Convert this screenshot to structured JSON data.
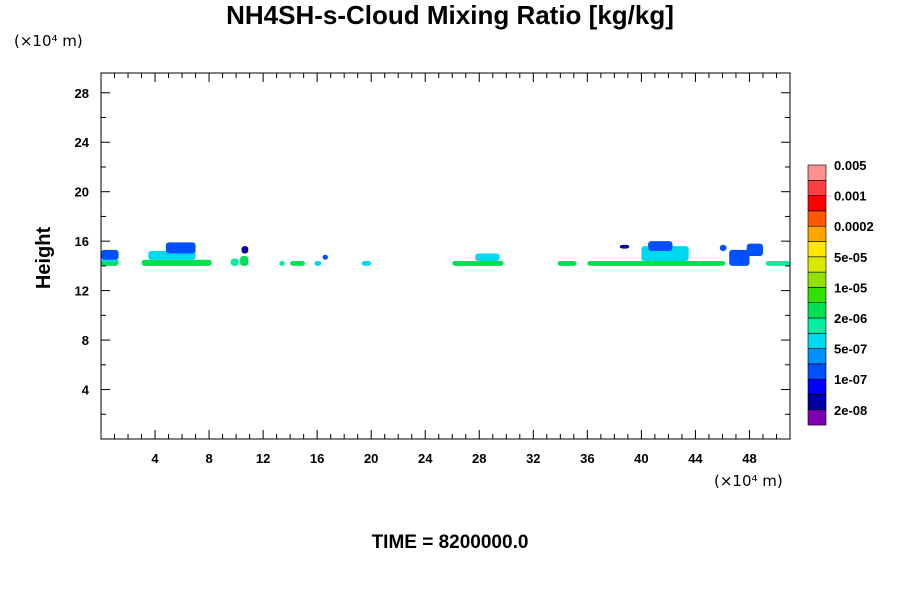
{
  "title": "NH4SH-s-Cloud Mixing Ratio [kg/kg]",
  "y_unit": "(×10⁴ m)",
  "x_unit": "(×10⁴ m)",
  "time_label": "TIME = 8200000.0",
  "chart_data": {
    "type": "heatmap",
    "title": "NH4SH-s-Cloud Mixing Ratio [kg/kg]",
    "xlabel": "",
    "ylabel": "Height",
    "xlim": [
      0,
      51
    ],
    "ylim": [
      0,
      29.6
    ],
    "x_ticks": [
      4,
      8,
      12,
      16,
      20,
      24,
      28,
      32,
      36,
      40,
      44,
      48
    ],
    "y_ticks": [
      4,
      8,
      12,
      16,
      20,
      24,
      28
    ],
    "colorbar": {
      "colors": [
        "#7f00b2",
        "#0000a0",
        "#0000ff",
        "#0050ff",
        "#0090ff",
        "#00d8f0",
        "#00f0a0",
        "#00e050",
        "#30e000",
        "#90e000",
        "#d8e800",
        "#ffe600",
        "#ffa500",
        "#ff5a00",
        "#ff0000",
        "#ff4040",
        "#ff9090"
      ],
      "tick_labels": [
        "2e-08",
        "1e-07",
        "5e-07",
        "2e-06",
        "1e-05",
        "5e-05",
        "0.0002",
        "0.001",
        "0.005"
      ]
    },
    "cloud_layer": {
      "base_height": 14.0,
      "main_band_top": 14.5,
      "patches": [
        {
          "x0": 0.0,
          "x1": 1.3,
          "y0": 14.0,
          "y1": 14.5,
          "level": "1e-05",
          "top": "5e-07"
        },
        {
          "x0": 0.0,
          "x1": 1.3,
          "y0": 14.5,
          "y1": 15.3,
          "level": "1e-07"
        },
        {
          "x0": 3.0,
          "x1": 8.2,
          "y0": 14.0,
          "y1": 14.5,
          "level": "1e-05"
        },
        {
          "x0": 3.5,
          "x1": 7.0,
          "y0": 14.5,
          "y1": 15.2,
          "level": "5e-07"
        },
        {
          "x0": 4.8,
          "x1": 7.0,
          "y0": 15.0,
          "y1": 15.9,
          "level": "1e-07"
        },
        {
          "x0": 9.6,
          "x1": 10.2,
          "y0": 14.0,
          "y1": 14.6,
          "level": "2e-06"
        },
        {
          "x0": 10.3,
          "x1": 10.9,
          "y0": 14.0,
          "y1": 14.8,
          "level": "1e-05"
        },
        {
          "x0": 10.4,
          "x1": 10.9,
          "y0": 15.0,
          "y1": 15.6,
          "level": "2e-08"
        },
        {
          "x0": 13.2,
          "x1": 13.6,
          "y0": 14.0,
          "y1": 14.4,
          "level": "2e-06"
        },
        {
          "x0": 14.0,
          "x1": 15.1,
          "y0": 14.0,
          "y1": 14.4,
          "level": "1e-05"
        },
        {
          "x0": 15.8,
          "x1": 16.3,
          "y0": 14.0,
          "y1": 14.4,
          "level": "5e-07"
        },
        {
          "x0": 16.4,
          "x1": 16.8,
          "y0": 14.5,
          "y1": 14.9,
          "level": "1e-07"
        },
        {
          "x0": 19.3,
          "x1": 20.0,
          "y0": 14.0,
          "y1": 14.4,
          "level": "5e-07"
        },
        {
          "x0": 26.0,
          "x1": 29.8,
          "y0": 14.0,
          "y1": 14.4,
          "level": "1e-05"
        },
        {
          "x0": 27.7,
          "x1": 29.5,
          "y0": 14.4,
          "y1": 15.0,
          "level": "5e-07"
        },
        {
          "x0": 33.8,
          "x1": 35.2,
          "y0": 14.0,
          "y1": 14.4,
          "level": "1e-05"
        },
        {
          "x0": 36.0,
          "x1": 46.2,
          "y0": 14.0,
          "y1": 14.4,
          "level": "1e-05"
        },
        {
          "x0": 40.0,
          "x1": 43.5,
          "y0": 14.4,
          "y1": 15.6,
          "level": "5e-07"
        },
        {
          "x0": 40.5,
          "x1": 42.3,
          "y0": 15.2,
          "y1": 16.0,
          "level": "1e-07"
        },
        {
          "x0": 38.4,
          "x1": 39.1,
          "y0": 15.4,
          "y1": 15.7,
          "level": "2e-08"
        },
        {
          "x0": 45.8,
          "x1": 46.3,
          "y0": 15.2,
          "y1": 15.7,
          "level": "1e-07"
        },
        {
          "x0": 46.5,
          "x1": 48.0,
          "y0": 14.0,
          "y1": 15.3,
          "level": "1e-07"
        },
        {
          "x0": 47.8,
          "x1": 49.0,
          "y0": 14.8,
          "y1": 15.8,
          "level": "1e-07"
        },
        {
          "x0": 49.2,
          "x1": 51.0,
          "y0": 14.0,
          "y1": 14.4,
          "level": "2e-06"
        }
      ]
    }
  }
}
